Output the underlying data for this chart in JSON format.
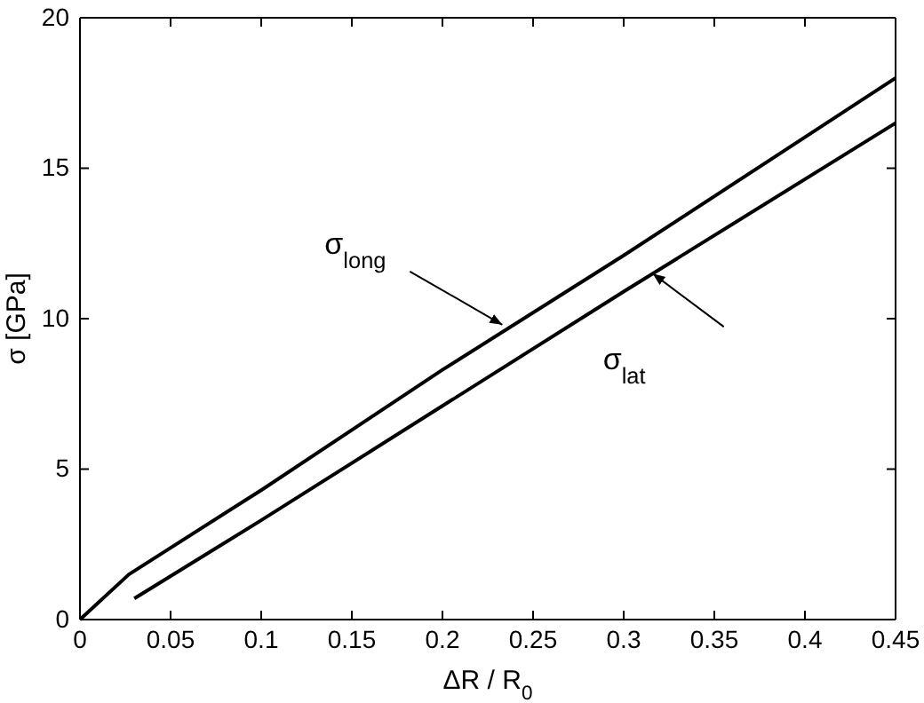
{
  "chart_data": {
    "type": "line",
    "xlabel": "ΔR / R$_{0}$",
    "ylabel": "σ [GPa]",
    "xlim": [
      0,
      0.45
    ],
    "xticks": [
      0,
      0.05,
      0.1,
      0.15,
      0.2,
      0.25,
      0.3,
      0.35,
      0.4,
      0.45
    ],
    "ylim": [
      0,
      20
    ],
    "yticks": [
      0,
      5,
      10,
      15,
      20
    ],
    "grid": false,
    "marker": "none",
    "line_style": "solid",
    "series": [
      {
        "color": "#000000",
        "x": [
          0,
          0.027,
          0.1,
          0.2,
          0.3,
          0.45
        ],
        "values": [
          0,
          1.5,
          4.3,
          8.3,
          12.1,
          18
        ]
      },
      {
        "color": "#000000",
        "x": [
          0.03,
          0.1,
          0.2,
          0.3,
          0.45
        ],
        "values": [
          0.7,
          3.3,
          7.1,
          10.9,
          16.5
        ]
      }
    ],
    "annotations": [
      {
        "text": "σ$_{long}$",
        "x": 0.233,
        "y": 9.8
      },
      {
        "text": "σ$_{lat}$",
        "x": 0.316,
        "y": 11.5
      }
    ]
  }
}
